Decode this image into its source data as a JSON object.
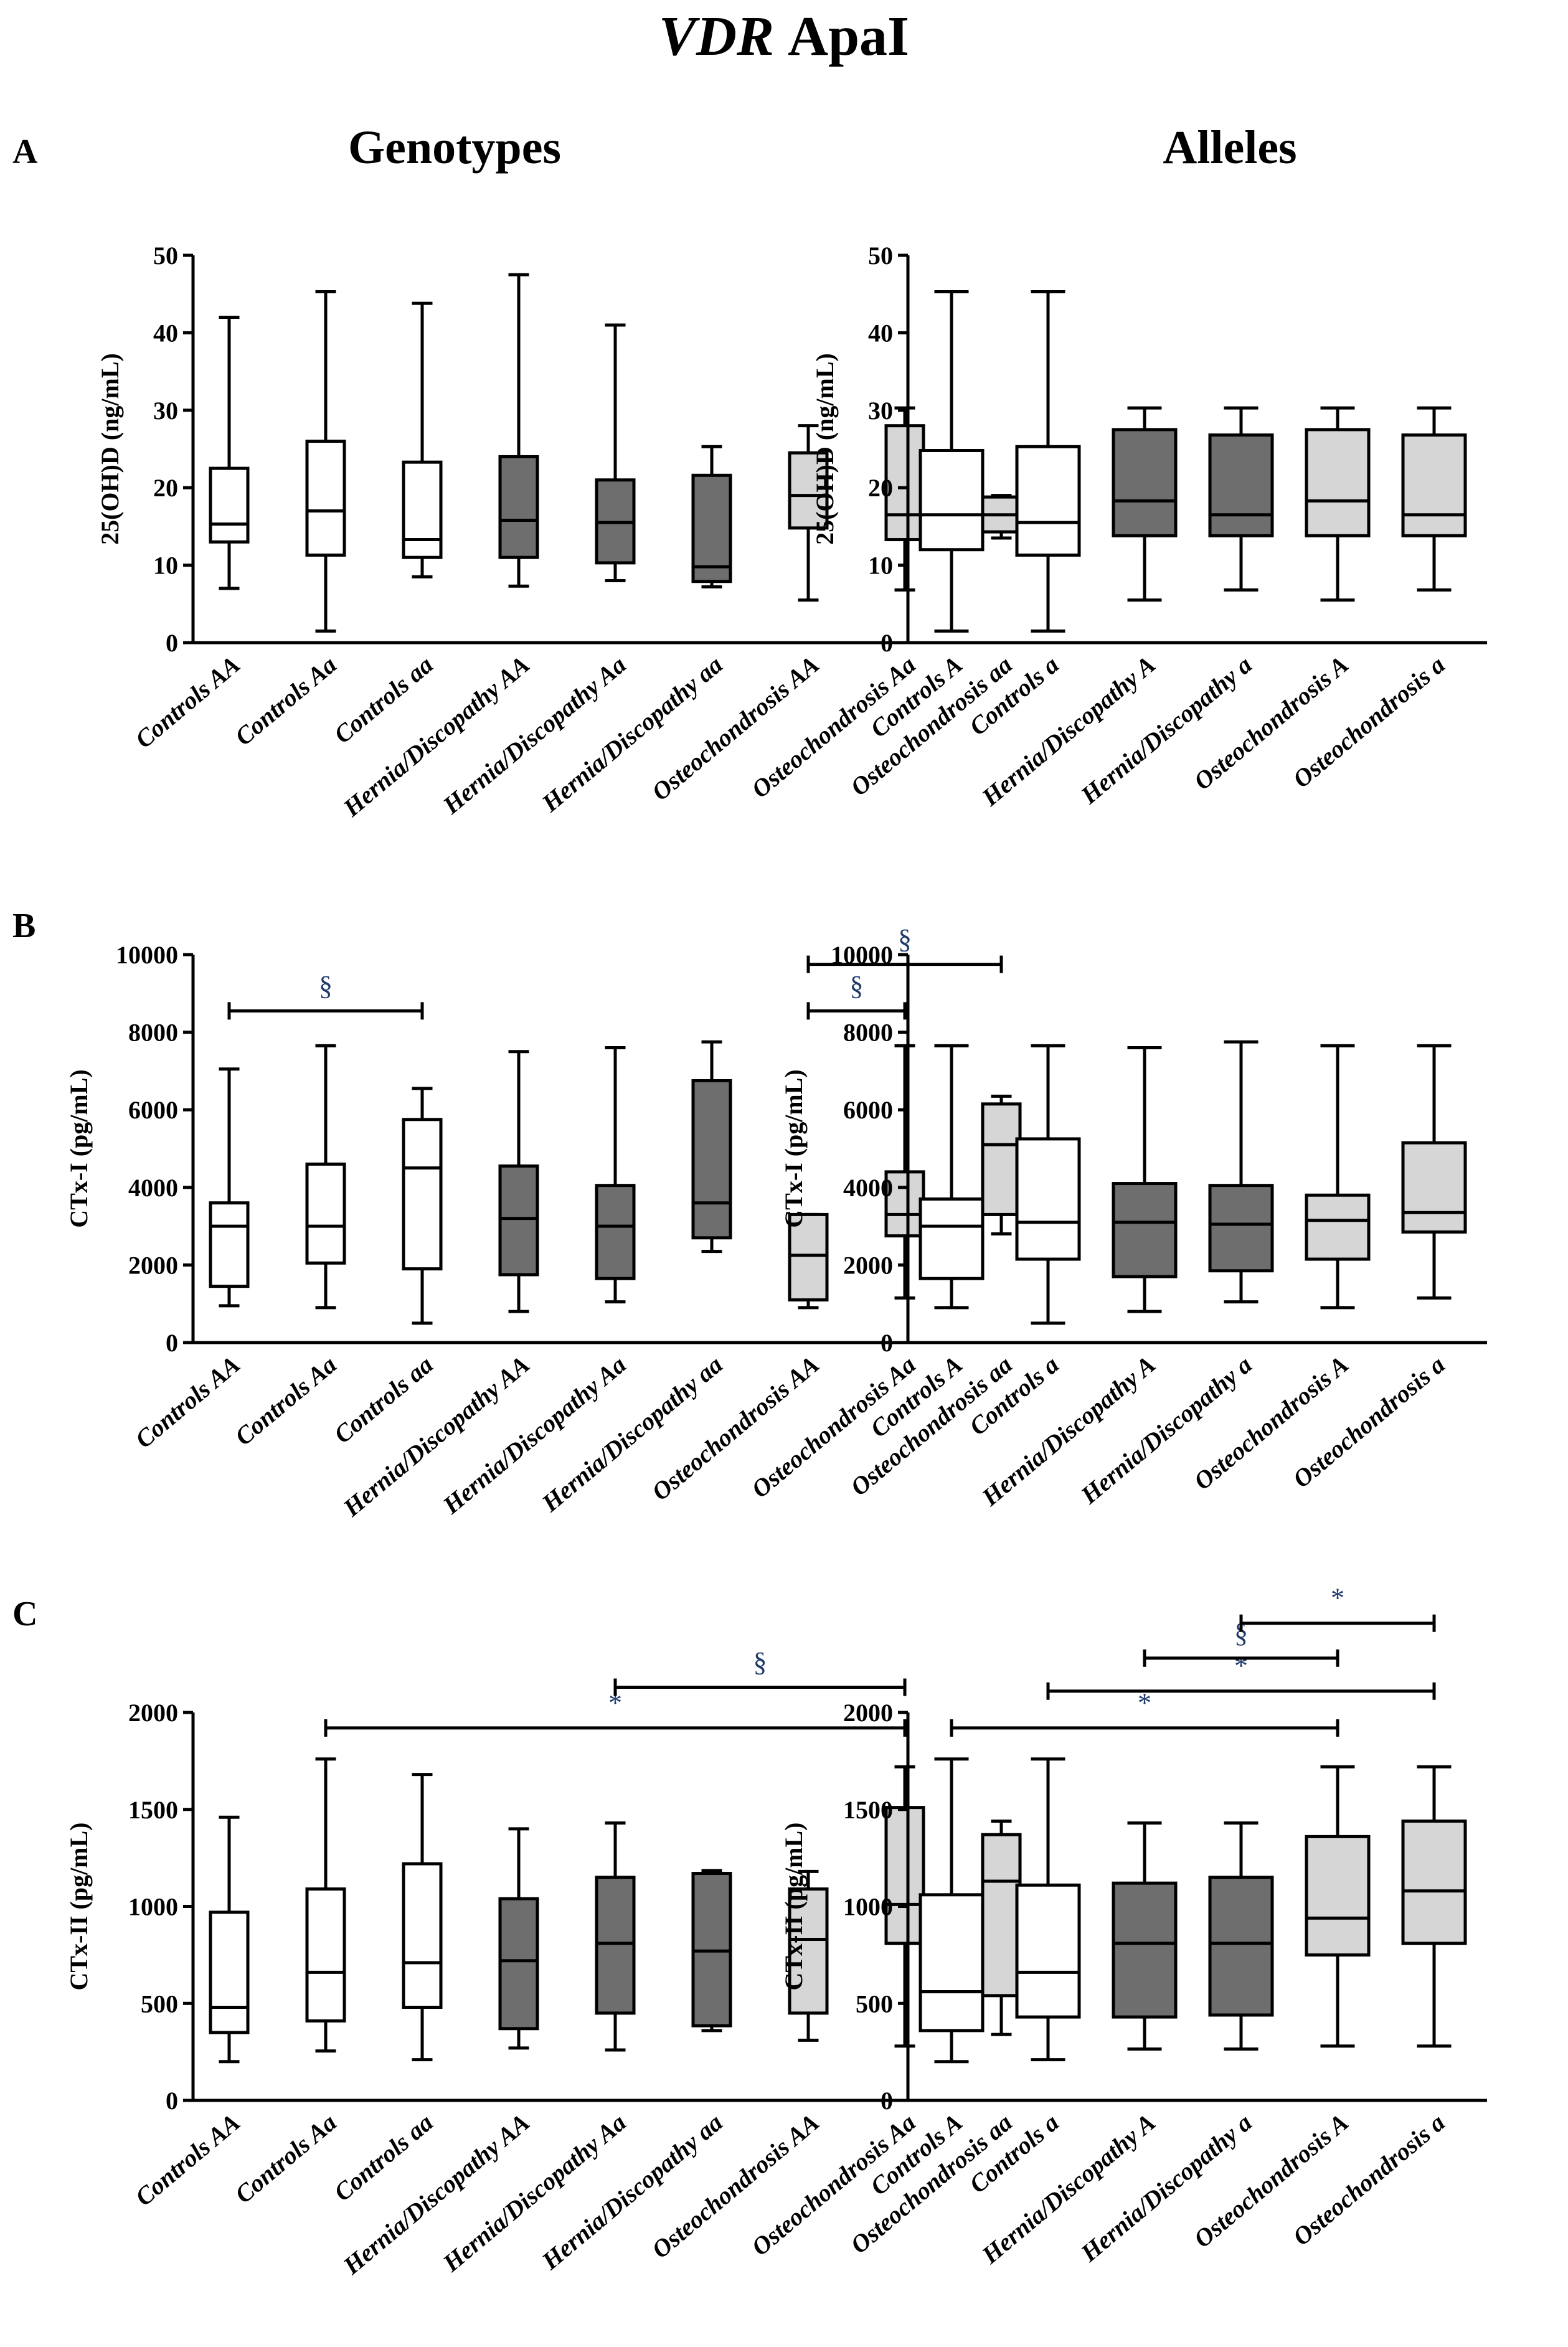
{
  "figure": {
    "title_gene": "VDR",
    "title_snp": "ApaI",
    "col_left": "Genotypes",
    "col_right": "Alleles",
    "panel_A": "A",
    "panel_B": "B",
    "panel_C": "C"
  },
  "colors": {
    "control": "#ffffff",
    "hernia": "#6e6e6e",
    "osteo": "#d6d6d6",
    "line": "#000000",
    "sig": "#1f3a6b"
  },
  "chart_data": [
    {
      "id": "A-genotypes",
      "type": "boxplot",
      "ylabel": "25(OH)D (ng/mL)",
      "ylim": [
        0,
        50
      ],
      "yticks": [
        0,
        10,
        20,
        30,
        40,
        50
      ],
      "categories": [
        "Controls AA",
        "Controls Aa",
        "Controls aa",
        "Hernia/Discopathy AA",
        "Hernia/Discopathy Aa",
        "Hernia/Discopathy aa",
        "Osteochondrosis AA",
        "Osteochondrosis Aa",
        "Osteochondrosis aa"
      ],
      "groups": [
        "control",
        "control",
        "control",
        "hernia",
        "hernia",
        "hernia",
        "osteo",
        "osteo",
        "osteo"
      ],
      "boxes": [
        {
          "min": 7,
          "q1": 13,
          "median": 15.3,
          "q3": 22.5,
          "max": 42
        },
        {
          "min": 1.5,
          "q1": 11.3,
          "median": 17,
          "q3": 26,
          "max": 45.3
        },
        {
          "min": 8.5,
          "q1": 11,
          "median": 13.3,
          "q3": 23.3,
          "max": 43.8
        },
        {
          "min": 7.3,
          "q1": 11,
          "median": 15.8,
          "q3": 24,
          "max": 47.5
        },
        {
          "min": 8,
          "q1": 10.3,
          "median": 15.5,
          "q3": 21,
          "max": 41
        },
        {
          "min": 7.2,
          "q1": 7.9,
          "median": 9.8,
          "q3": 21.6,
          "max": 25.3
        },
        {
          "min": 5.5,
          "q1": 14.8,
          "median": 19,
          "q3": 24.5,
          "max": 28
        },
        {
          "min": 6.8,
          "q1": 13.3,
          "median": 16.5,
          "q3": 28,
          "max": 30.3
        },
        {
          "min": 13.5,
          "q1": 14.3,
          "median": 16.5,
          "q3": 18.8,
          "max": 19
        }
      ],
      "brackets": []
    },
    {
      "id": "A-alleles",
      "type": "boxplot",
      "ylabel": "25(OH)D (ng/mL)",
      "ylim": [
        0,
        50
      ],
      "yticks": [
        0,
        10,
        20,
        30,
        40,
        50
      ],
      "categories": [
        "Controls A",
        "Controls a",
        "Hernia/Discopathy A",
        "Hernia/Discopathy a",
        "Osteochondrosis A",
        "Osteochondrosis a"
      ],
      "groups": [
        "control",
        "control",
        "hernia",
        "hernia",
        "osteo",
        "osteo"
      ],
      "boxes": [
        {
          "min": 1.5,
          "q1": 12,
          "median": 16.5,
          "q3": 24.8,
          "max": 45.3
        },
        {
          "min": 1.5,
          "q1": 11.3,
          "median": 15.5,
          "q3": 25.3,
          "max": 45.3
        },
        {
          "min": 5.5,
          "q1": 13.8,
          "median": 18.3,
          "q3": 27.5,
          "max": 30.3
        },
        {
          "min": 6.8,
          "q1": 13.8,
          "median": 16.5,
          "q3": 26.8,
          "max": 30.3
        },
        {
          "min": 5.5,
          "q1": 13.8,
          "median": 18.3,
          "q3": 27.5,
          "max": 30.3
        },
        {
          "min": 6.8,
          "q1": 13.8,
          "median": 16.5,
          "q3": 26.8,
          "max": 30.3
        }
      ],
      "brackets": []
    },
    {
      "id": "B-genotypes",
      "type": "boxplot",
      "ylabel": "CTx-I (pg/mL)",
      "ylim": [
        0,
        10000
      ],
      "yticks": [
        0,
        2000,
        4000,
        6000,
        8000,
        10000
      ],
      "categories": [
        "Controls AA",
        "Controls Aa",
        "Controls aa",
        "Hernia/Discopathy AA",
        "Hernia/Discopathy Aa",
        "Hernia/Discopathy aa",
        "Osteochondrosis AA",
        "Osteochondrosis Aa",
        "Osteochondrosis aa"
      ],
      "groups": [
        "control",
        "control",
        "control",
        "hernia",
        "hernia",
        "hernia",
        "osteo",
        "osteo",
        "osteo"
      ],
      "boxes": [
        {
          "min": 950,
          "q1": 1450,
          "median": 3000,
          "q3": 3600,
          "max": 7050
        },
        {
          "min": 900,
          "q1": 2050,
          "median": 3000,
          "q3": 4600,
          "max": 7650
        },
        {
          "min": 500,
          "q1": 1900,
          "median": 4500,
          "q3": 5750,
          "max": 6550
        },
        {
          "min": 800,
          "q1": 1750,
          "median": 3200,
          "q3": 4550,
          "max": 7500
        },
        {
          "min": 1050,
          "q1": 1650,
          "median": 3000,
          "q3": 4050,
          "max": 7600
        },
        {
          "min": 2350,
          "q1": 2700,
          "median": 3600,
          "q3": 6750,
          "max": 7750
        },
        {
          "min": 900,
          "q1": 1100,
          "median": 2250,
          "q3": 3300,
          "max": 3300
        },
        {
          "min": 1150,
          "q1": 2750,
          "median": 3300,
          "q3": 4400,
          "max": 7650
        },
        {
          "min": 2800,
          "q1": 3300,
          "median": 5100,
          "q3": 6150,
          "max": 6350
        }
      ],
      "brackets": [
        {
          "from": 0,
          "to": 2,
          "y": 8550,
          "label": "§"
        },
        {
          "from": 6,
          "to": 7,
          "y": 8550,
          "label": "§"
        },
        {
          "from": 6,
          "to": 8,
          "y": 9750,
          "label": "§"
        }
      ]
    },
    {
      "id": "B-alleles",
      "type": "boxplot",
      "ylabel": "CTx-I (pg/mL)",
      "ylim": [
        0,
        10000
      ],
      "yticks": [
        0,
        2000,
        4000,
        6000,
        8000,
        10000
      ],
      "categories": [
        "Controls A",
        "Controls a",
        "Hernia/Discopathy A",
        "Hernia/Discopathy a",
        "Osteochondrosis A",
        "Osteochondrosis a"
      ],
      "groups": [
        "control",
        "control",
        "hernia",
        "hernia",
        "osteo",
        "osteo"
      ],
      "boxes": [
        {
          "min": 900,
          "q1": 1650,
          "median": 3000,
          "q3": 3700,
          "max": 7650
        },
        {
          "min": 500,
          "q1": 2150,
          "median": 3100,
          "q3": 5250,
          "max": 7650
        },
        {
          "min": 800,
          "q1": 1700,
          "median": 3100,
          "q3": 4100,
          "max": 7600
        },
        {
          "min": 1050,
          "q1": 1850,
          "median": 3050,
          "q3": 4050,
          "max": 7750
        },
        {
          "min": 900,
          "q1": 2150,
          "median": 3150,
          "q3": 3800,
          "max": 7650
        },
        {
          "min": 1150,
          "q1": 2850,
          "median": 3350,
          "q3": 5150,
          "max": 7650
        }
      ],
      "brackets": []
    },
    {
      "id": "C-genotypes",
      "type": "boxplot",
      "ylabel": "CTx-II (pg/mL)",
      "ylim": [
        0,
        2000
      ],
      "yticks": [
        0,
        500,
        1000,
        1500,
        2000
      ],
      "categories": [
        "Controls AA",
        "Controls Aa",
        "Controls aa",
        "Hernia/Discopathy AA",
        "Hernia/Discopathy Aa",
        "Hernia/Discopathy aa",
        "Osteochondrosis AA",
        "Osteochondrosis Aa",
        "Osteochondrosis aa"
      ],
      "groups": [
        "control",
        "control",
        "control",
        "hernia",
        "hernia",
        "hernia",
        "osteo",
        "osteo",
        "osteo"
      ],
      "boxes": [
        {
          "min": 200,
          "q1": 350,
          "median": 480,
          "q3": 970,
          "max": 1460
        },
        {
          "min": 255,
          "q1": 410,
          "median": 660,
          "q3": 1090,
          "max": 1760
        },
        {
          "min": 210,
          "q1": 480,
          "median": 710,
          "q3": 1220,
          "max": 1680
        },
        {
          "min": 270,
          "q1": 370,
          "median": 720,
          "q3": 1040,
          "max": 1400
        },
        {
          "min": 260,
          "q1": 450,
          "median": 810,
          "q3": 1150,
          "max": 1430
        },
        {
          "min": 360,
          "q1": 385,
          "median": 770,
          "q3": 1170,
          "max": 1185
        },
        {
          "min": 310,
          "q1": 450,
          "median": 830,
          "q3": 1090,
          "max": 1180
        },
        {
          "min": 280,
          "q1": 810,
          "median": 1010,
          "q3": 1510,
          "max": 1720
        },
        {
          "min": 340,
          "q1": 540,
          "median": 1130,
          "q3": 1370,
          "max": 1440
        }
      ],
      "brackets": [
        {
          "from": 1,
          "to": 7,
          "y": 1920,
          "label": "*"
        },
        {
          "from": 4,
          "to": 7,
          "y": 2130,
          "label": "§"
        }
      ]
    },
    {
      "id": "C-alleles",
      "type": "boxplot",
      "ylabel": "CTx-II (pg/mL)",
      "ylim": [
        0,
        2000
      ],
      "yticks": [
        0,
        500,
        1000,
        1500,
        2000
      ],
      "categories": [
        "Controls A",
        "Controls a",
        "Hernia/Discopathy A",
        "Hernia/Discopathy a",
        "Osteochondrosis A",
        "Osteochondrosis a"
      ],
      "groups": [
        "control",
        "control",
        "hernia",
        "hernia",
        "osteo",
        "osteo"
      ],
      "boxes": [
        {
          "min": 200,
          "q1": 360,
          "median": 560,
          "q3": 1060,
          "max": 1760
        },
        {
          "min": 210,
          "q1": 430,
          "median": 660,
          "q3": 1110,
          "max": 1760
        },
        {
          "min": 265,
          "q1": 430,
          "median": 810,
          "q3": 1120,
          "max": 1430
        },
        {
          "min": 265,
          "q1": 440,
          "median": 810,
          "q3": 1150,
          "max": 1430
        },
        {
          "min": 280,
          "q1": 750,
          "median": 940,
          "q3": 1360,
          "max": 1720
        },
        {
          "min": 280,
          "q1": 810,
          "median": 1080,
          "q3": 1440,
          "max": 1720
        }
      ],
      "brackets": [
        {
          "from": 0,
          "to": 4,
          "y": 1920,
          "label": "*"
        },
        {
          "from": 1,
          "to": 5,
          "y": 2110,
          "label": "*"
        },
        {
          "from": 2,
          "to": 4,
          "y": 2280,
          "label": "§"
        },
        {
          "from": 3,
          "to": 5,
          "y": 2460,
          "label": "*"
        }
      ]
    }
  ]
}
